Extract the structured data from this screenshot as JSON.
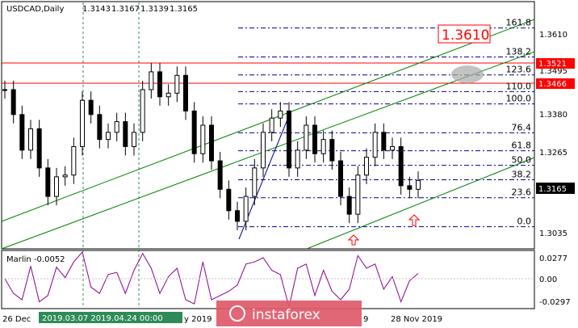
{
  "header": {
    "symbol": "USDCAD,Daily",
    "open": "1.3143",
    "high": "1.3167",
    "low": "1.3139",
    "close": "1.3165"
  },
  "price_axis": {
    "ticks": [
      "1.3610",
      "1.3495",
      "1.3380",
      "1.3265",
      "1.3035"
    ],
    "current_price": "1.3165",
    "current_price_bg": "#000000"
  },
  "levels": {
    "red_top": "1.3521",
    "red_bottom": "1.3466",
    "target": "1.3610",
    "red_color": "#ff0000"
  },
  "fibonacci": [
    "161.8",
    "138.2",
    "123.6",
    "110.0",
    "100.0",
    "76.4",
    "61.8",
    "50.0",
    "38.2",
    "23.6",
    "0.0"
  ],
  "indicator": {
    "label": "Marlin -0.0052",
    "ticks": [
      "0.0277",
      "0.00",
      "-0.0297"
    ]
  },
  "time_axis": {
    "labels": [
      "26 Dec",
      "y 2019",
      "9",
      "28 Nov 2019"
    ],
    "highlight_label": "2019.03.07 2019.04.24 00:00",
    "highlight_color": "#2e8b57"
  },
  "watermark": {
    "text": "instaforex"
  },
  "chart_data": {
    "type": "candlestick",
    "symbol": "USDCAD",
    "timeframe": "Daily",
    "ylim": [
      1.2975,
      1.3665
    ],
    "series": [
      {
        "name": "price",
        "values": [
          1.342,
          1.335,
          1.325,
          1.331,
          1.32,
          1.312,
          1.3175,
          1.318,
          1.326,
          1.339,
          1.335,
          1.328,
          1.33,
          1.333,
          1.326,
          1.33,
          1.342,
          1.347,
          1.34,
          1.341,
          1.346,
          1.336,
          1.324,
          1.332,
          1.322,
          1.314,
          1.308,
          1.305,
          1.312,
          1.32,
          1.33,
          1.334,
          1.336,
          1.32,
          1.325,
          1.332,
          1.324,
          1.328,
          1.322,
          1.312,
          1.307,
          1.318,
          1.323,
          1.33,
          1.325,
          1.326,
          1.315,
          1.314,
          1.3165
        ]
      }
    ],
    "fibonacci_levels": [
      161.8,
      138.2,
      123.6,
      110.0,
      100.0,
      76.4,
      61.8,
      50.0,
      38.2,
      23.6,
      0.0
    ],
    "indicator": {
      "name": "Marlin",
      "value": -0.0052
    }
  }
}
